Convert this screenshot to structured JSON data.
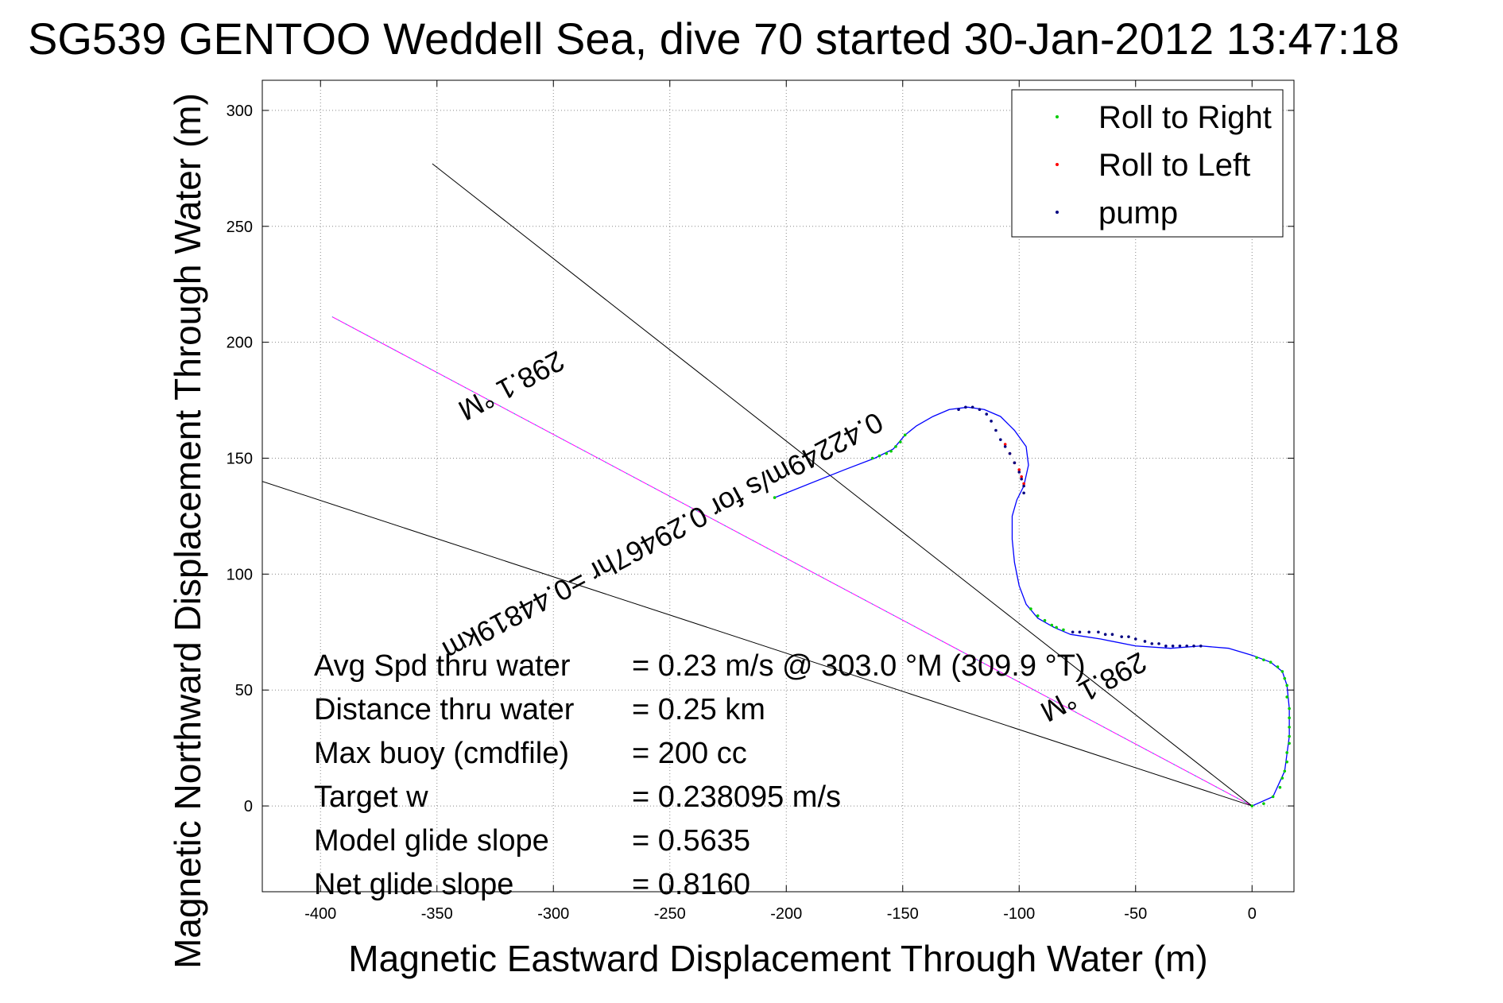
{
  "chart_data": {
    "type": "scatter",
    "title": "SG539 GENTOO Weddell Sea, dive 70 started 30-Jan-2012 13:47:18",
    "xlabel": "Magnetic Eastward Displacement Through Water (m)",
    "ylabel": "Magnetic Northward Displacement Through Water (m)",
    "xlim": [
      -425,
      18
    ],
    "ylim": [
      -37,
      313
    ],
    "xticks": [
      -400,
      -350,
      -300,
      -250,
      -200,
      -150,
      -100,
      -50,
      0
    ],
    "yticks": [
      0,
      50,
      100,
      150,
      200,
      250,
      300
    ],
    "grid": true,
    "legend_position": "top-right",
    "legend": [
      {
        "label": "Roll to Right",
        "color": "#00cc00"
      },
      {
        "label": "Roll to Left",
        "color": "#ff0000"
      },
      {
        "label": "pump",
        "color": "#000080"
      }
    ],
    "colors": {
      "track": "#0000ff",
      "heading_line": "#ff00ff",
      "reference": "#000000",
      "grid": "#888888"
    },
    "track": {
      "x": [
        0,
        9,
        14,
        16,
        16,
        15,
        13,
        8,
        0,
        -10,
        -22,
        -35,
        -50,
        -65,
        -78,
        -85,
        -92,
        -97,
        -100,
        -102,
        -103,
        -103,
        -101,
        -98,
        -96,
        -97,
        -102,
        -108,
        -115,
        -122,
        -130,
        -137,
        -144,
        -149,
        -154,
        -162,
        -175,
        -205
      ],
      "y": [
        0,
        4,
        15,
        30,
        42,
        52,
        58,
        62,
        65,
        68,
        69,
        68,
        69,
        72,
        74,
        77,
        81,
        87,
        95,
        105,
        115,
        125,
        132,
        138,
        147,
        155,
        162,
        168,
        171,
        172,
        171,
        168,
        164,
        160,
        154,
        150,
        145,
        133
      ]
    },
    "markers": [
      {
        "type": "Roll to Right",
        "points": [
          [
            0,
            0
          ],
          [
            5,
            1
          ],
          [
            9,
            4
          ],
          [
            12,
            8
          ],
          [
            13,
            12
          ],
          [
            14,
            15
          ],
          [
            15,
            19
          ],
          [
            15,
            23
          ],
          [
            16,
            27
          ],
          [
            16,
            30
          ],
          [
            16,
            34
          ],
          [
            16,
            38
          ],
          [
            16,
            42
          ],
          [
            15,
            47
          ],
          [
            15,
            52
          ],
          [
            14,
            55
          ],
          [
            13,
            58
          ],
          [
            11,
            60
          ],
          [
            8,
            62
          ],
          [
            5,
            63
          ],
          [
            2,
            64
          ],
          [
            -81,
            76
          ],
          [
            -84,
            77
          ],
          [
            -86,
            78
          ],
          [
            -89,
            80
          ],
          [
            -92,
            82
          ],
          [
            -95,
            85
          ],
          [
            -149,
            160
          ],
          [
            -151,
            157
          ],
          [
            -153,
            155
          ],
          [
            -155,
            153
          ],
          [
            -157,
            152
          ],
          [
            -160,
            151
          ],
          [
            -163,
            150
          ],
          [
            -205,
            133
          ]
        ]
      },
      {
        "type": "Roll to Left",
        "points": [
          [
            -106,
            156
          ],
          [
            -104,
            152
          ],
          [
            -102,
            148
          ],
          [
            -100,
            145
          ],
          [
            -99,
            142
          ],
          [
            -98,
            139
          ]
        ]
      },
      {
        "type": "pump",
        "points": [
          [
            -22,
            69
          ],
          [
            -25,
            69
          ],
          [
            -28,
            69
          ],
          [
            -31,
            69
          ],
          [
            -34,
            69
          ],
          [
            -37,
            69
          ],
          [
            -40,
            70
          ],
          [
            -43,
            70
          ],
          [
            -46,
            71
          ],
          [
            -50,
            72
          ],
          [
            -53,
            73
          ],
          [
            -56,
            73
          ],
          [
            -60,
            74
          ],
          [
            -63,
            74
          ],
          [
            -66,
            75
          ],
          [
            -70,
            75
          ],
          [
            -74,
            75
          ],
          [
            -77,
            75
          ],
          [
            -98,
            135
          ],
          [
            -98,
            138
          ],
          [
            -99,
            141
          ],
          [
            -100,
            144
          ],
          [
            -102,
            148
          ],
          [
            -104,
            152
          ],
          [
            -106,
            155
          ],
          [
            -108,
            158
          ],
          [
            -110,
            162
          ],
          [
            -112,
            166
          ],
          [
            -114,
            169
          ],
          [
            -117,
            171
          ],
          [
            -120,
            172
          ],
          [
            -123,
            172
          ],
          [
            -126,
            171
          ]
        ]
      }
    ],
    "lines": [
      {
        "name": "heading",
        "color": "#ff00ff",
        "x": [
          0,
          -395
        ],
        "y": [
          0,
          211
        ]
      },
      {
        "name": "reference-upper",
        "color": "#000000",
        "x": [
          0,
          -352
        ],
        "y": [
          0,
          277
        ]
      },
      {
        "name": "reference-lower",
        "color": "#000000",
        "x": [
          0,
          -425
        ],
        "y": [
          0,
          140
        ]
      }
    ],
    "annotations": [
      {
        "text": "298.1 °M",
        "at": [
          -320,
          185
        ],
        "rotation": 151.9
      },
      {
        "text": "0.42249m/s for 0.29467hr =0.44819km",
        "at": [
          -255,
          120
        ],
        "rotation": 151.9
      },
      {
        "text": "298.1 °M",
        "at": [
          -70,
          55
        ],
        "rotation": 151.9
      }
    ],
    "stats": [
      {
        "label": "Avg Spd thru water",
        "value": "=  0.23 m/s @ 303.0 °M (309.9 °T)"
      },
      {
        "label": "Distance thru water",
        "value": "=  0.25 km"
      },
      {
        "label": "Max buoy (cmdfile)",
        "value": "= 200 cc"
      },
      {
        "label": "Target w",
        "value": "= 0.238095 m/s"
      },
      {
        "label": "Model glide slope",
        "value": "= 0.5635"
      },
      {
        "label": "Net glide slope",
        "value": "= 0.8160"
      }
    ]
  }
}
